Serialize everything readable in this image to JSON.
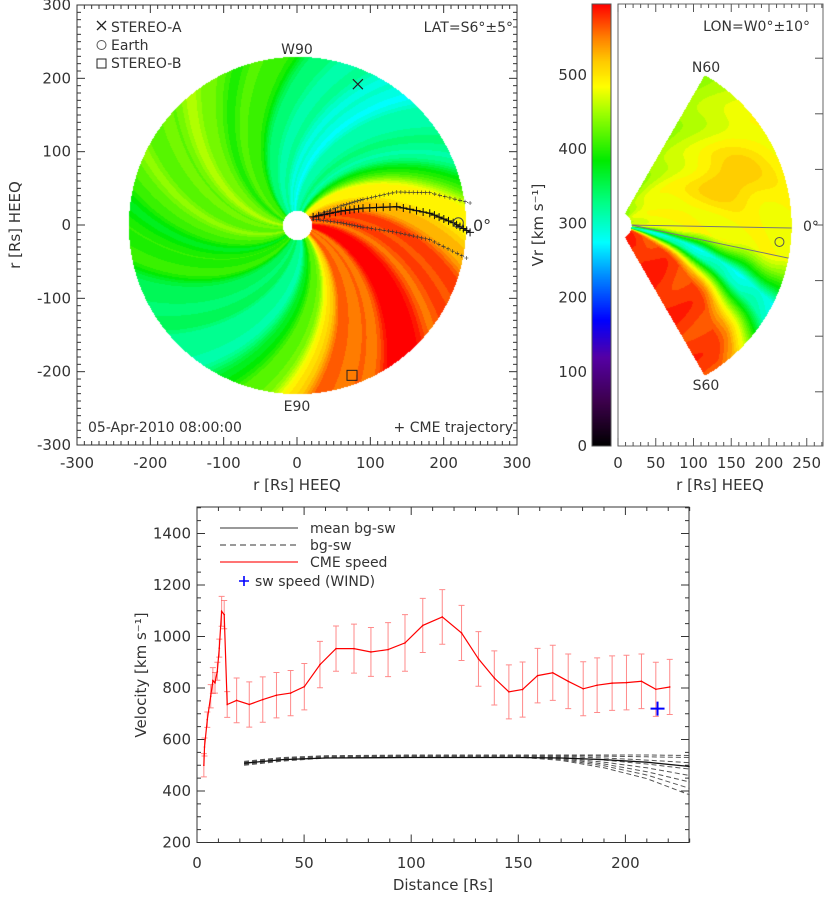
{
  "chart_data": [
    {
      "type": "heatmap",
      "panel": "ecliptic-plane",
      "xlabel": "r [Rs] HEEQ",
      "ylabel": "r [Rs] HEEQ",
      "xlim": [
        -300,
        300
      ],
      "ylim": [
        -300,
        300
      ],
      "xticks": [
        -300,
        -200,
        -100,
        0,
        100,
        200,
        300
      ],
      "yticks": [
        -300,
        -200,
        -100,
        0,
        100,
        200,
        300
      ],
      "labels": {
        "top": "W90",
        "bottom": "E90",
        "right": "0°",
        "lat": "LAT=S6°±5°",
        "date": "05-Apr-2010 08:00:00",
        "trajectory_legend": "+ CME trajectory"
      },
      "legend": [
        {
          "marker": "x",
          "label": "STEREO-A"
        },
        {
          "marker": "circle",
          "label": "Earth"
        },
        {
          "marker": "square",
          "label": "STEREO-B"
        }
      ],
      "markers": {
        "stereo_a": [
          83,
          192
        ],
        "earth": [
          220,
          3
        ],
        "stereo_b": [
          75,
          -205
        ]
      },
      "domain_radius": 230,
      "cme_trajectory": {
        "center": [
          [
            22,
            11
          ],
          [
            60,
            19
          ],
          [
            90,
            23
          ],
          [
            136,
            25
          ],
          [
            181,
            16
          ],
          [
            213,
            3
          ],
          [
            236,
            -10
          ]
        ],
        "upper": [
          [
            22,
            11
          ],
          [
            60,
            26
          ],
          [
            90,
            35
          ],
          [
            136,
            45
          ],
          [
            181,
            44
          ],
          [
            236,
            30
          ]
        ],
        "lower": [
          [
            22,
            8
          ],
          [
            60,
            3
          ],
          [
            90,
            -3
          ],
          [
            136,
            -10
          ],
          [
            181,
            -20
          ],
          [
            231,
            -45
          ]
        ]
      }
    },
    {
      "type": "heatmap",
      "panel": "meridional-plane",
      "xlabel": "r [Rs] HEEQ",
      "xlim": [
        0,
        271
      ],
      "xticks": [
        0,
        50,
        100,
        150,
        200,
        250
      ],
      "labels": {
        "lon": "LON=W0°±10°",
        "north": "N60",
        "south": "S60",
        "equator": "0°"
      },
      "earth": {
        "r": 215,
        "lat": -6
      },
      "latitude_band": [
        -1,
        -11
      ],
      "colorbar": {
        "label": "Vr [km s⁻¹]",
        "range": [
          0,
          596
        ],
        "ticks": [
          0,
          100,
          200,
          300,
          400,
          500
        ]
      }
    },
    {
      "type": "line",
      "xlabel": "Distance [Rs]",
      "ylabel": "Velocity [km s⁻¹]",
      "xlim": [
        0,
        230
      ],
      "ylim": [
        200,
        1500
      ],
      "xticks": [
        0,
        50,
        100,
        150,
        200
      ],
      "yticks": [
        200,
        400,
        600,
        800,
        1000,
        1200,
        1400
      ],
      "legend": [
        "mean bg-sw",
        "bg-sw",
        "CME speed",
        "sw speed (WIND)"
      ],
      "legend_placement": "top-left",
      "series": {
        "cme": {
          "name": "CME speed",
          "color": "#ff0000",
          "x": [
            3.2,
            3.5,
            4.8,
            6.4,
            7.4,
            8.4,
            9.5,
            10.4,
            11.5,
            12.7,
            14.1,
            18.5,
            24.4,
            30.7,
            37.1,
            43.7,
            50.1,
            57.4,
            64.9,
            73.3,
            81.2,
            89.2,
            97.1,
            105.4,
            114.5,
            123.5,
            131.4,
            138.8,
            145.6,
            152,
            159,
            166.1,
            173.3,
            180.3,
            186.8,
            193.8,
            200.5,
            207.5,
            214.2,
            220.7
          ],
          "y": [
            500,
            571,
            677,
            768,
            829,
            820,
            865,
            955,
            1098,
            1085,
            736,
            752,
            736,
            755,
            772,
            780,
            805,
            891,
            953,
            953,
            940,
            949,
            975,
            1043,
            1076,
            1014,
            913,
            839,
            785,
            794,
            848,
            859,
            826,
            797,
            811,
            819,
            821,
            826,
            795,
            804
          ],
          "err": [
            45,
            35,
            30,
            45,
            50,
            40,
            35,
            35,
            58,
            55,
            50,
            87,
            88,
            88,
            88,
            88,
            90,
            90,
            88,
            95,
            95,
            105,
            110,
            105,
            106,
            107,
            106,
            105,
            105,
            107,
            106,
            107,
            106,
            105,
            106,
            106,
            106,
            106,
            105,
            107
          ]
        },
        "mean_bg": {
          "name": "mean bg-sw",
          "x": [
            22,
            40,
            60,
            100,
            150,
            170,
            190,
            210,
            230
          ],
          "y": [
            508,
            522,
            528,
            530,
            530,
            528,
            522,
            512,
            495
          ]
        },
        "bg": {
          "name": "bg-sw",
          "x": [
            22,
            40,
            60,
            100,
            150,
            170,
            190,
            210,
            230
          ],
          "runs": [
            [
              515,
              530,
              537,
              540,
              540,
              540,
              540,
              540,
              538
            ],
            [
              512,
              528,
              535,
              538,
              538,
              537,
              535,
              533,
              530
            ],
            [
              510,
              526,
              533,
              537,
              537,
              534,
              528,
              520,
              510
            ],
            [
              508,
              524,
              532,
              536,
              536,
              531,
              520,
              505,
              485
            ],
            [
              506,
              522,
              531,
              535,
              535,
              528,
              512,
              490,
              460
            ],
            [
              504,
              520,
              530,
              534,
              534,
              525,
              505,
              475,
              435
            ],
            [
              502,
              518,
              529,
              533,
              533,
              522,
              498,
              462,
              410
            ],
            [
              500,
              516,
              528,
              532,
              532,
              519,
              490,
              448,
              385
            ]
          ]
        },
        "wind": {
          "name": "sw speed (WIND)",
          "color": "#0000ff",
          "x": [
            215
          ],
          "y": [
            720
          ]
        }
      }
    }
  ]
}
